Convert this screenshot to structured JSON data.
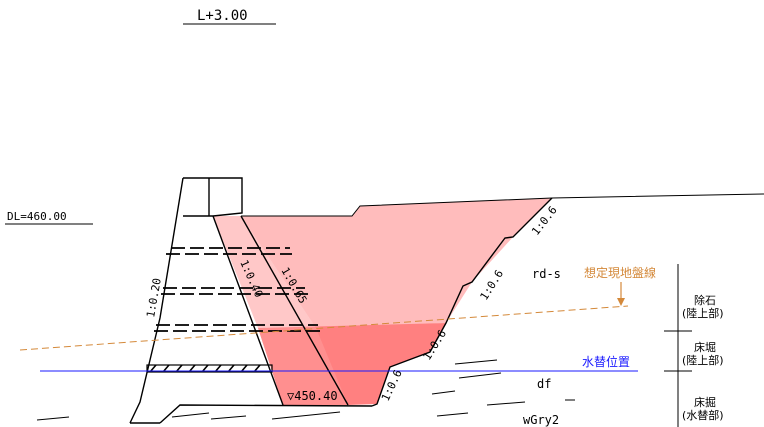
{
  "section": {
    "station_label": "L+3.00"
  },
  "datum": {
    "label": "DL=460.00"
  },
  "slopes": {
    "dam_upstream": "1:0.20",
    "dam_core_1": "1:0.65",
    "dam_core_2": "1:0.40",
    "excavation_1": "1:0.6",
    "excavation_2": "1:0.6",
    "excavation_3": "1:0.6",
    "excavation_4": "1:0.6"
  },
  "elevation": {
    "foundation_label": "▽450.40"
  },
  "geology": {
    "rd": "rd-s",
    "df": "df",
    "wgry": "wGry2"
  },
  "ground_line": {
    "label": "想定現地盤線"
  },
  "water_line": {
    "label": "水替位置"
  },
  "zones": {
    "zone1": {
      "line1": "除石",
      "line2": "(陸上部)"
    },
    "zone2": {
      "line1": "床堀",
      "line2": "(陸上部)"
    },
    "zone3": {
      "line1": "床掘",
      "line2": "(水替部)"
    }
  },
  "colors": {
    "light_pink": "#ffbcbc",
    "dark_pink": "#ff8080",
    "ground_line": "#d4893a",
    "water_line": "#1a1aff",
    "line": "#000000"
  }
}
